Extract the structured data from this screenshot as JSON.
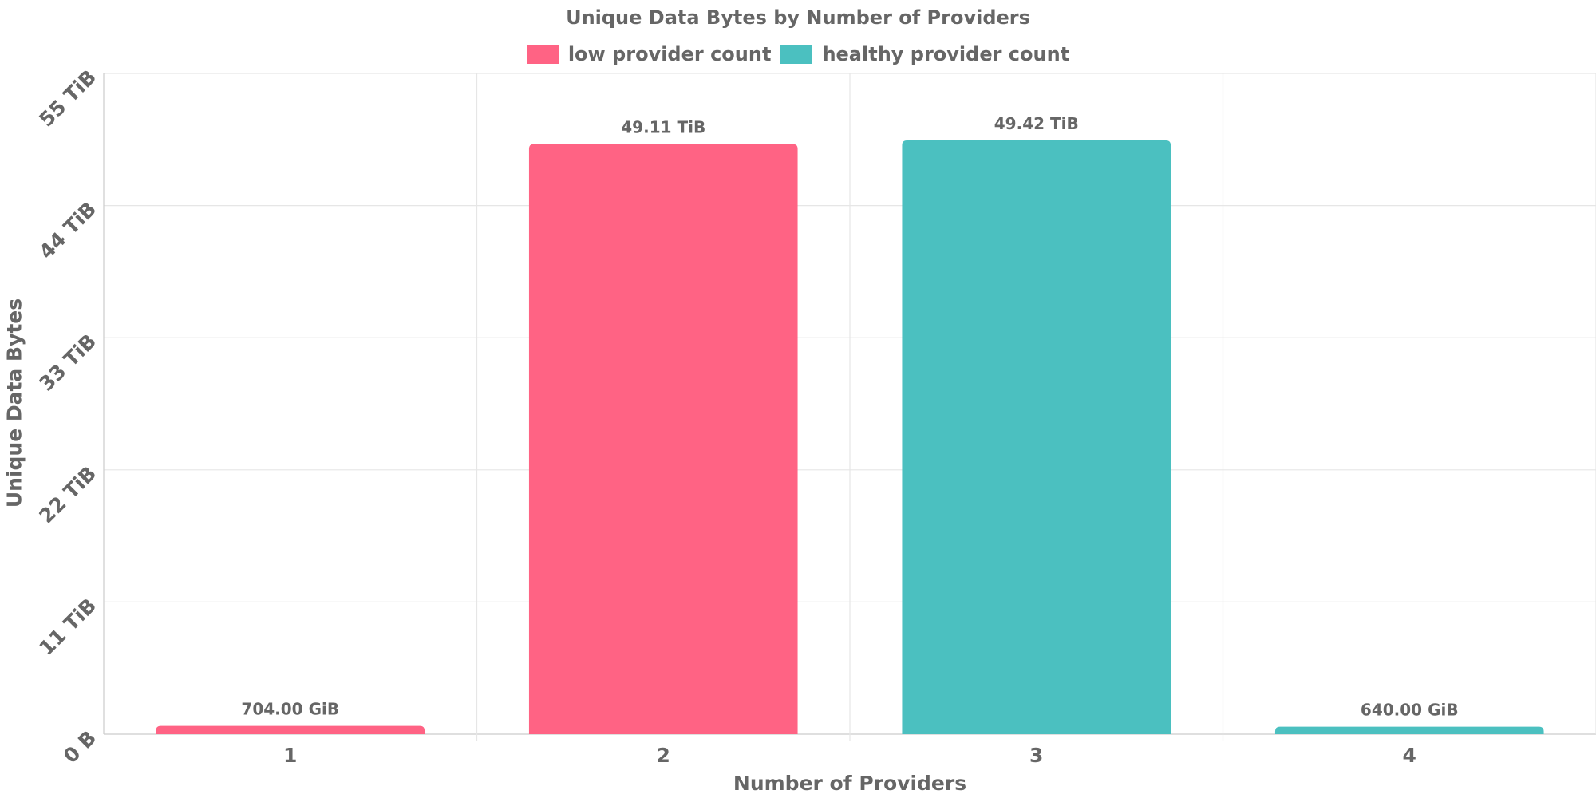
{
  "chart_data": {
    "type": "bar",
    "title": "Unique Data Bytes by Number of Providers",
    "xlabel": "Number of Providers",
    "ylabel": "Unique Data Bytes",
    "categories": [
      "1",
      "2",
      "3",
      "4"
    ],
    "unit": "TiB",
    "ylim": [
      0,
      55
    ],
    "yticks": [
      0,
      11,
      22,
      33,
      44,
      55
    ],
    "ytick_labels": [
      "0 B",
      "11 TiB",
      "22 TiB",
      "33 TiB",
      "44 TiB",
      "55 TiB"
    ],
    "series": [
      {
        "name": "low provider count",
        "color": "#ff6384",
        "values": [
          0.6875,
          49.11,
          null,
          null
        ]
      },
      {
        "name": "healthy provider count",
        "color": "#4bc0c0",
        "values": [
          null,
          null,
          49.42,
          0.625
        ]
      }
    ],
    "data_labels": [
      "704.00 GiB",
      "49.11 TiB",
      "49.42 TiB",
      "640.00 GiB"
    ],
    "grid": true,
    "legend_position": "top"
  }
}
